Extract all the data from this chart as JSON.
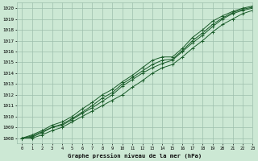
{
  "title": "Graphe pression niveau de la mer (hPa)",
  "xlim": [
    -0.5,
    23
  ],
  "ylim": [
    1007.5,
    1020.5
  ],
  "yticks": [
    1008,
    1009,
    1010,
    1011,
    1012,
    1013,
    1014,
    1015,
    1016,
    1017,
    1018,
    1019,
    1020
  ],
  "xticks": [
    0,
    1,
    2,
    3,
    4,
    5,
    6,
    7,
    8,
    9,
    10,
    11,
    12,
    13,
    14,
    15,
    16,
    17,
    18,
    19,
    20,
    21,
    22,
    23
  ],
  "background_color": "#cce8d4",
  "grid_color": "#9dbfad",
  "line_color": "#1a5c2a",
  "marker_color": "#1a5c2a",
  "series": [
    [
      1008.0,
      1008.0,
      1008.3,
      1008.7,
      1009.0,
      1009.5,
      1010.0,
      1010.5,
      1011.0,
      1011.5,
      1012.0,
      1012.7,
      1013.3,
      1014.0,
      1014.5,
      1014.8,
      1015.5,
      1016.3,
      1017.0,
      1017.8,
      1018.5,
      1019.0,
      1019.5,
      1019.8
    ],
    [
      1008.0,
      1008.1,
      1008.5,
      1009.0,
      1009.2,
      1009.7,
      1010.3,
      1010.8,
      1011.4,
      1012.0,
      1012.8,
      1013.4,
      1014.0,
      1014.5,
      1014.9,
      1015.2,
      1016.0,
      1016.8,
      1017.5,
      1018.3,
      1019.0,
      1019.5,
      1019.8,
      1020.0
    ],
    [
      1008.0,
      1008.3,
      1008.7,
      1009.2,
      1009.5,
      1010.0,
      1010.7,
      1011.3,
      1012.0,
      1012.5,
      1013.2,
      1013.8,
      1014.5,
      1015.2,
      1015.5,
      1015.5,
      1016.3,
      1017.3,
      1018.0,
      1018.8,
      1019.3,
      1019.7,
      1020.0,
      1020.2
    ],
    [
      1008.0,
      1008.2,
      1008.6,
      1009.0,
      1009.3,
      1009.8,
      1010.4,
      1011.0,
      1011.7,
      1012.2,
      1013.0,
      1013.6,
      1014.2,
      1014.8,
      1015.2,
      1015.3,
      1016.1,
      1017.0,
      1017.7,
      1018.5,
      1019.1,
      1019.6,
      1019.9,
      1020.1
    ]
  ]
}
